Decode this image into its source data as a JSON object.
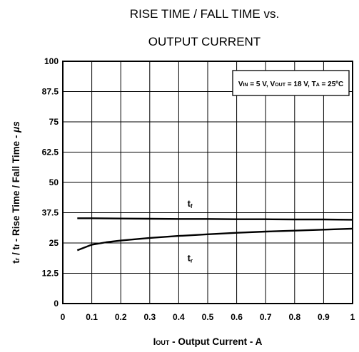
{
  "chart_data": {
    "type": "line",
    "title": "RISE TIME / FALL TIME vs.",
    "subtitle": "OUTPUT CURRENT",
    "xlabel": {
      "main": "I",
      "sub": "OUT",
      "rest": " - Output Current - A"
    },
    "ylabel": {
      "a": "t",
      "a_sub": "r",
      "b": " / t",
      "b_sub": "f",
      "rest": " - Rise Time / Fall Time - ",
      "unit": "μs"
    },
    "xlim": [
      0,
      1
    ],
    "ylim": [
      0,
      100
    ],
    "x_ticks": [
      {
        "value": 0,
        "label": "0"
      },
      {
        "value": 0.1,
        "label": "0.1"
      },
      {
        "value": 0.2,
        "label": "0.2"
      },
      {
        "value": 0.3,
        "label": "0.3"
      },
      {
        "value": 0.4,
        "label": "0.4"
      },
      {
        "value": 0.5,
        "label": "0.5"
      },
      {
        "value": 0.6,
        "label": "0.6"
      },
      {
        "value": 0.7,
        "label": "0.7"
      },
      {
        "value": 0.8,
        "label": "0.8"
      },
      {
        "value": 0.9,
        "label": "0.9"
      },
      {
        "value": 1,
        "label": "1"
      }
    ],
    "y_ticks": [
      {
        "value": 0,
        "label": "0"
      },
      {
        "value": 12.5,
        "label": "12.5"
      },
      {
        "value": 25,
        "label": "25"
      },
      {
        "value": 37.5,
        "label": "37.5"
      },
      {
        "value": 50,
        "label": "50"
      },
      {
        "value": 62.5,
        "label": "62.5"
      },
      {
        "value": 75,
        "label": "75"
      },
      {
        "value": 87.5,
        "label": "87.5"
      },
      {
        "value": 100,
        "label": "100"
      }
    ],
    "grid": true,
    "legend": {
      "position": "top-right",
      "parts": [
        {
          "t": "V"
        },
        {
          "s": "IN"
        },
        {
          "t": " = 5 V, V"
        },
        {
          "s": "OUT"
        },
        {
          "t": " = 18 V, T"
        },
        {
          "s": "A"
        },
        {
          "t": " = 25ºC"
        }
      ]
    },
    "series": [
      {
        "name": "tf",
        "main": "t",
        "sub": "f",
        "label_at": [
          0.43,
          40
        ],
        "x": [
          0.05,
          0.1,
          0.2,
          0.3,
          0.4,
          0.5,
          0.6,
          0.7,
          0.8,
          0.9,
          1.0
        ],
        "y": [
          35.2,
          35.2,
          35.1,
          35.0,
          34.9,
          34.9,
          34.8,
          34.8,
          34.7,
          34.7,
          34.6
        ]
      },
      {
        "name": "tr",
        "main": "t",
        "sub": "r",
        "label_at": [
          0.43,
          17.5
        ],
        "x": [
          0.05,
          0.1,
          0.15,
          0.2,
          0.3,
          0.4,
          0.5,
          0.6,
          0.7,
          0.8,
          0.9,
          1.0
        ],
        "y": [
          22.0,
          24.3,
          25.3,
          26.0,
          27.1,
          27.9,
          28.6,
          29.2,
          29.7,
          30.1,
          30.5,
          30.9
        ]
      }
    ],
    "colors": {
      "line": "#000000",
      "grid": "#000000",
      "background": "#ffffff"
    }
  }
}
